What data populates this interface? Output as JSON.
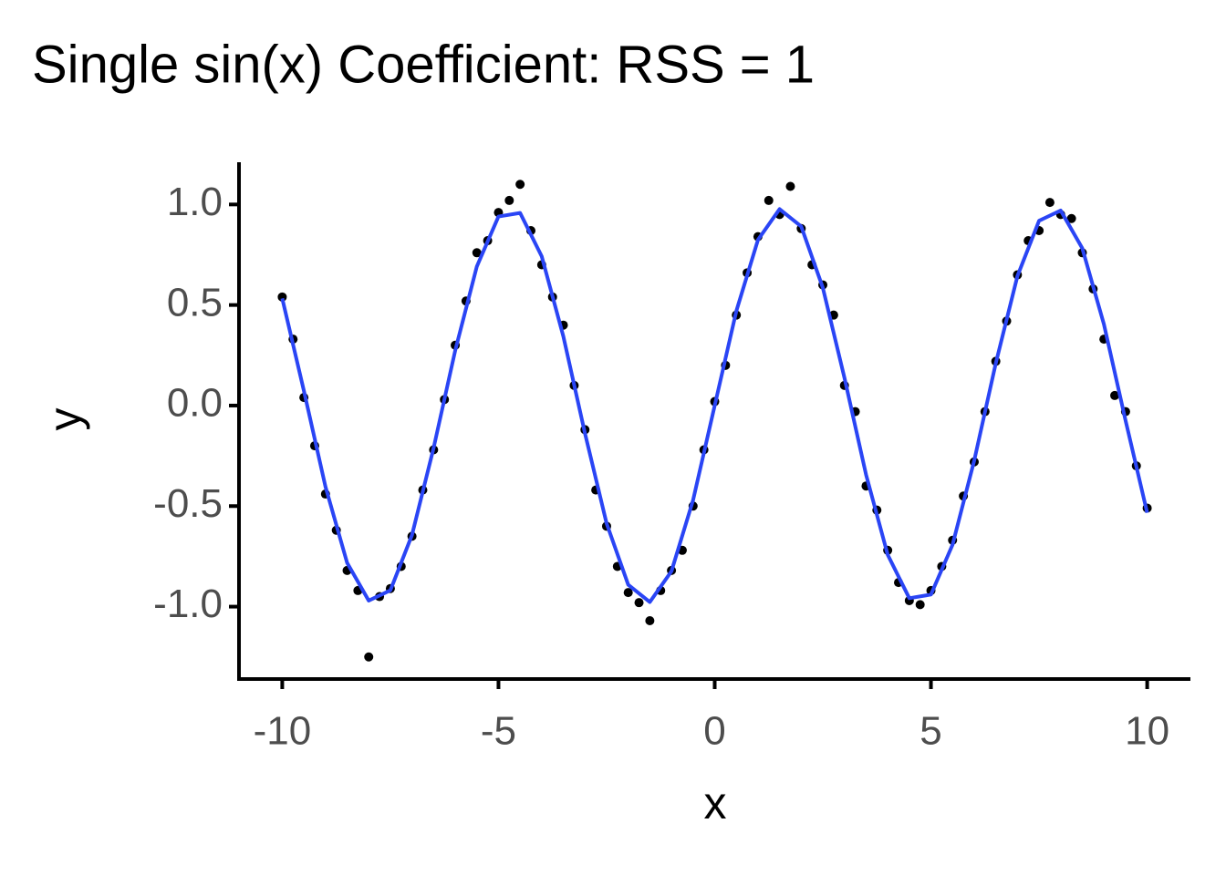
{
  "chart_data": {
    "type": "scatter",
    "title": "Single sin(x) Coefficient: RSS = 1",
    "x_label": "x",
    "y_label": "y",
    "xlim": [
      -11,
      11
    ],
    "xticks": [
      -10,
      -5,
      0,
      5,
      10
    ],
    "ylim": [
      -1.36,
      1.21
    ],
    "yticks": [
      {
        "value": -1,
        "label": "-1.0"
      },
      -0.5,
      {
        "value": 0,
        "label": "0.0"
      },
      0.5,
      {
        "value": 1,
        "label": "1.0"
      }
    ],
    "series": [
      {
        "type": "scatter",
        "color": "#000000",
        "x": [
          -10,
          -9.75,
          -9.5,
          -9.25,
          -9,
          -8.75,
          -8.5,
          -8.25,
          -8,
          -7.75,
          -7.5,
          -7.25,
          -7,
          -6.75,
          -6.5,
          -6.25,
          -6,
          -5.75,
          -5.5,
          -5.25,
          -5,
          -4.75,
          -4.5,
          -4.25,
          -4,
          -3.75,
          -3.5,
          -3.25,
          -3,
          -2.75,
          -2.5,
          -2.25,
          -2,
          -1.75,
          -1.5,
          -1.25,
          -1,
          -0.75,
          -0.5,
          -0.25,
          0,
          0.25,
          0.5,
          0.75,
          1,
          1.25,
          1.5,
          1.75,
          2,
          2.25,
          2.5,
          2.75,
          3,
          3.25,
          3.5,
          3.75,
          4,
          4.25,
          4.5,
          4.75,
          5,
          5.25,
          5.5,
          5.75,
          6,
          6.25,
          6.5,
          6.75,
          7,
          7.25,
          7.5,
          7.75,
          8,
          8.25,
          8.5,
          8.75,
          9,
          9.25,
          9.5,
          9.75,
          10
        ],
        "values": [
          0.54,
          0.33,
          0.04,
          -0.2,
          -0.44,
          -0.62,
          -0.82,
          -0.92,
          -1.25,
          -0.95,
          -0.91,
          -0.8,
          -0.65,
          -0.42,
          -0.22,
          0.03,
          0.3,
          0.52,
          0.76,
          0.82,
          0.96,
          1.02,
          1.1,
          0.87,
          0.7,
          0.54,
          0.4,
          0.1,
          -0.12,
          -0.42,
          -0.6,
          -0.8,
          -0.93,
          -0.98,
          -1.07,
          -0.92,
          -0.82,
          -0.72,
          -0.5,
          -0.22,
          0.02,
          0.2,
          0.45,
          0.66,
          0.84,
          1.02,
          0.95,
          1.09,
          0.88,
          0.7,
          0.6,
          0.45,
          0.1,
          -0.03,
          -0.4,
          -0.52,
          -0.72,
          -0.88,
          -0.97,
          -0.99,
          -0.92,
          -0.8,
          -0.67,
          -0.45,
          -0.28,
          -0.03,
          0.22,
          0.42,
          0.65,
          0.82,
          0.87,
          1.01,
          0.95,
          0.93,
          0.76,
          0.58,
          0.33,
          0.05,
          -0.03,
          -0.3,
          -0.51
        ]
      },
      {
        "type": "line",
        "color": "#2a45f5",
        "x": [
          -10,
          -9.5,
          -9,
          -8.5,
          -8,
          -7.5,
          -7,
          -6.5,
          -6,
          -5.5,
          -5,
          -4.5,
          -4,
          -3.5,
          -3,
          -2.5,
          -2,
          -1.5,
          -1,
          -0.5,
          0,
          0.5,
          1,
          1.5,
          2,
          2.5,
          3,
          3.5,
          4,
          4.5,
          5,
          5.5,
          6,
          6.5,
          7,
          7.5,
          8,
          8.5,
          9,
          9.5,
          10
        ],
        "values": [
          0.533,
          0.074,
          -0.404,
          -0.782,
          -0.97,
          -0.919,
          -0.644,
          -0.211,
          0.274,
          0.692,
          0.94,
          0.958,
          0.742,
          0.344,
          -0.138,
          -0.586,
          -0.891,
          -0.977,
          -0.824,
          -0.47,
          0,
          0.47,
          0.824,
          0.977,
          0.891,
          0.586,
          0.138,
          -0.344,
          -0.742,
          -0.958,
          -0.94,
          -0.692,
          -0.274,
          0.211,
          0.644,
          0.919,
          0.97,
          0.782,
          0.404,
          -0.074,
          -0.533
        ]
      }
    ]
  }
}
